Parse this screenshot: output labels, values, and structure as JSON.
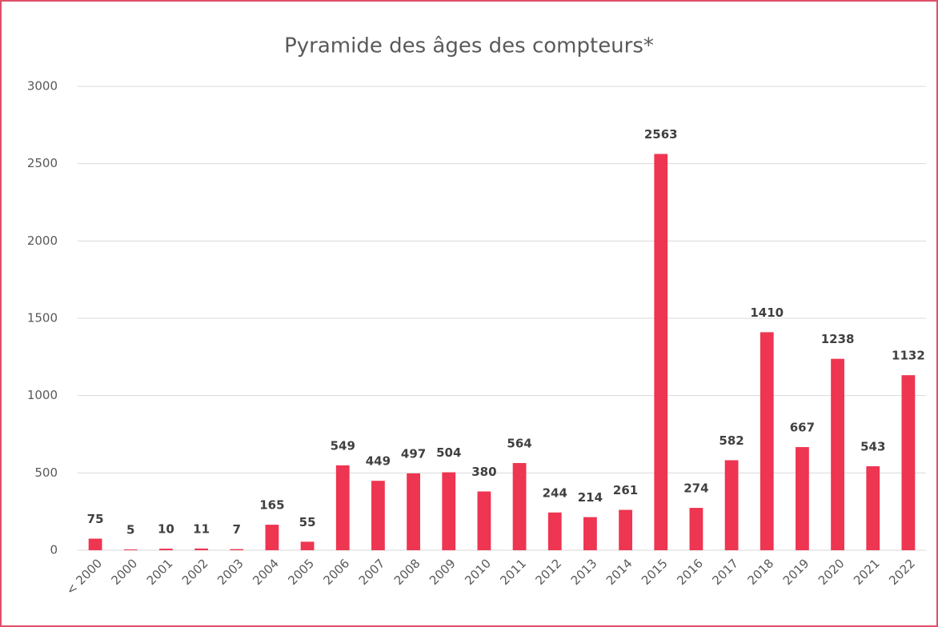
{
  "chart_data": {
    "type": "bar",
    "title": "Pyramide des âges des compteurs*",
    "categories": [
      "< 2000",
      "2000",
      "2001",
      "2002",
      "2003",
      "2004",
      "2005",
      "2006",
      "2007",
      "2008",
      "2009",
      "2010",
      "2011",
      "2012",
      "2013",
      "2014",
      "2015",
      "2016",
      "2017",
      "2018",
      "2019",
      "2020",
      "2021",
      "2022"
    ],
    "values": [
      75,
      5,
      10,
      11,
      7,
      165,
      55,
      549,
      449,
      497,
      504,
      380,
      564,
      244,
      214,
      261,
      2563,
      274,
      582,
      1410,
      667,
      1238,
      543,
      1132
    ],
    "color": "#ee3551",
    "ylim": [
      0,
      3000
    ],
    "yticks": [
      0,
      500,
      1000,
      1500,
      2000,
      2500,
      3000
    ],
    "grid": true
  }
}
